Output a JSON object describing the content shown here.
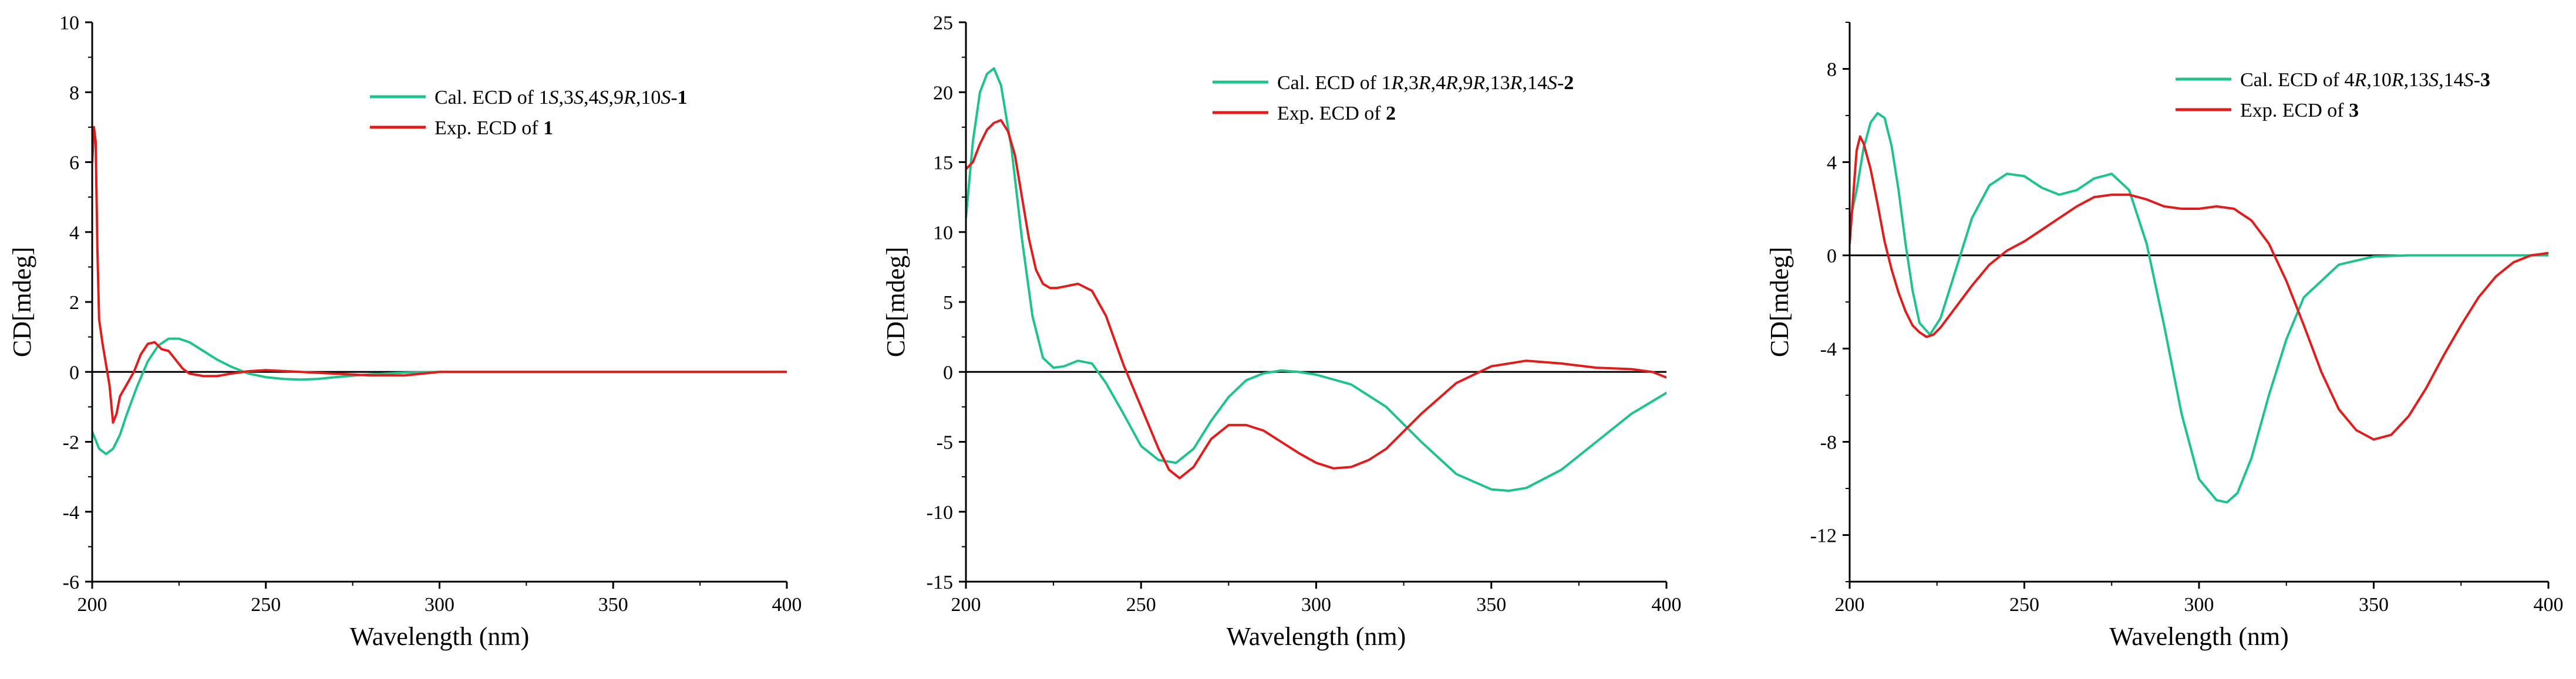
{
  "colors": {
    "calc": "#1dc28f",
    "exp": "#e21b1b",
    "axis": "#000000"
  },
  "chart_data": [
    {
      "type": "line",
      "xlabel": "Wavelength (nm)",
      "ylabel": "CD[mdeg]",
      "xlim": [
        200,
        400
      ],
      "ylim": [
        -6,
        10
      ],
      "xticks": [
        200,
        250,
        300,
        350,
        400
      ],
      "yticks": [
        -6,
        -4,
        -2,
        0,
        2,
        4,
        6,
        8,
        10
      ],
      "xtick_labels": [
        "200",
        "250",
        "300",
        "350",
        "400"
      ],
      "ytick_labels": [
        "-6",
        "-4",
        "-2",
        "0",
        "2",
        "4",
        "6",
        "8",
        "10"
      ],
      "legend_position": "top-right",
      "series": [
        {
          "name": "Cal. ECD of 1S,3S,4S,9R,10S-1",
          "legend_label": "Cal. ECD of 1S,3S,4S,9R,10S-1",
          "color": "#1dc28f",
          "x": [
            200,
            202,
            204,
            206,
            208,
            210,
            213,
            216,
            219,
            222,
            225,
            228,
            232,
            236,
            240,
            245,
            250,
            255,
            260,
            265,
            270,
            280,
            290,
            300,
            320,
            350,
            400
          ],
          "y": [
            -1.7,
            -2.2,
            -2.35,
            -2.2,
            -1.8,
            -1.2,
            -0.4,
            0.3,
            0.75,
            0.95,
            0.95,
            0.85,
            0.6,
            0.35,
            0.15,
            -0.05,
            -0.15,
            -0.2,
            -0.22,
            -0.2,
            -0.15,
            -0.07,
            -0.02,
            0,
            0,
            0,
            0
          ]
        },
        {
          "name": "Exp. ECD of 1",
          "legend_label": "Exp. ECD of 1",
          "color": "#e21b1b",
          "x": [
            200,
            200.5,
            201,
            201.5,
            202,
            203,
            204,
            205,
            206,
            207,
            208,
            210,
            212,
            214,
            216,
            218,
            220,
            222,
            224,
            226,
            228,
            232,
            236,
            240,
            245,
            250,
            260,
            270,
            280,
            290,
            300,
            350,
            400
          ],
          "y": [
            6.0,
            7.0,
            6.6,
            3.5,
            1.5,
            0.8,
            0.2,
            -0.4,
            -1.45,
            -1.2,
            -0.7,
            -0.35,
            0.0,
            0.5,
            0.8,
            0.85,
            0.65,
            0.6,
            0.35,
            0.1,
            -0.05,
            -0.12,
            -0.12,
            -0.05,
            0.02,
            0.05,
            0.0,
            -0.05,
            -0.1,
            -0.1,
            0.0,
            0.0,
            0.0
          ]
        }
      ]
    },
    {
      "type": "line",
      "xlabel": "Wavelength (nm)",
      "ylabel": "CD[mdeg]",
      "xlim": [
        200,
        400
      ],
      "ylim": [
        -15,
        25
      ],
      "xticks": [
        200,
        250,
        300,
        350,
        400
      ],
      "yticks": [
        -15,
        -10,
        -5,
        0,
        5,
        10,
        15,
        20,
        25
      ],
      "xtick_labels": [
        "200",
        "250",
        "300",
        "350",
        "400"
      ],
      "ytick_labels": [
        "-15",
        "-10",
        "-5",
        "0",
        "5",
        "10",
        "15",
        "20",
        "25"
      ],
      "legend_position": "top-right",
      "series": [
        {
          "name": "Cal. ECD of 1R,3R,4R,9R,13R,14S-2",
          "legend_label": "Cal. ECD of 1R,3R,4R,9R,13R,14S-2",
          "color": "#1dc28f",
          "x": [
            200,
            202,
            204,
            206,
            208,
            210,
            213,
            216,
            219,
            222,
            225,
            228,
            232,
            236,
            240,
            245,
            250,
            255,
            260,
            265,
            270,
            275,
            280,
            285,
            290,
            295,
            300,
            310,
            320,
            330,
            340,
            350,
            355,
            360,
            370,
            380,
            390,
            400
          ],
          "y": [
            11.0,
            16.5,
            20.0,
            21.3,
            21.7,
            20.5,
            16.0,
            9.5,
            4.0,
            1.0,
            0.3,
            0.4,
            0.8,
            0.6,
            -0.8,
            -3.0,
            -5.3,
            -6.3,
            -6.5,
            -5.5,
            -3.5,
            -1.8,
            -0.6,
            -0.1,
            0.1,
            0.0,
            -0.2,
            -0.9,
            -2.5,
            -5.0,
            -7.3,
            -8.4,
            -8.5,
            -8.3,
            -7.0,
            -5.0,
            -3.0,
            -1.5
          ]
        },
        {
          "name": "Exp. ECD of 2",
          "legend_label": "Exp. ECD of 2",
          "color": "#e21b1b",
          "x": [
            200,
            202,
            204,
            206,
            208,
            210,
            212,
            214,
            216,
            218,
            220,
            222,
            224,
            226,
            228,
            232,
            236,
            240,
            245,
            250,
            255,
            258,
            261,
            265,
            270,
            275,
            280,
            285,
            290,
            295,
            300,
            305,
            310,
            315,
            320,
            330,
            340,
            350,
            360,
            370,
            380,
            390,
            396,
            400
          ],
          "y": [
            14.5,
            15.0,
            16.3,
            17.3,
            17.8,
            18.0,
            17.2,
            15.5,
            12.5,
            9.5,
            7.3,
            6.3,
            6.0,
            6.0,
            6.1,
            6.3,
            5.8,
            4.0,
            0.5,
            -2.5,
            -5.5,
            -7.0,
            -7.6,
            -6.8,
            -4.8,
            -3.8,
            -3.8,
            -4.2,
            -5.0,
            -5.8,
            -6.5,
            -6.9,
            -6.8,
            -6.3,
            -5.5,
            -3.0,
            -0.8,
            0.4,
            0.8,
            0.6,
            0.3,
            0.2,
            0.0,
            -0.4
          ]
        }
      ]
    },
    {
      "type": "line",
      "xlabel": "Wavelength (nm)",
      "ylabel": "CD[mdeg]",
      "xlim": [
        200,
        400
      ],
      "ylim": [
        -14,
        10
      ],
      "xticks": [
        200,
        250,
        300,
        350,
        400
      ],
      "yticks": [
        -12,
        -8,
        -4,
        0,
        4,
        8
      ],
      "xtick_labels": [
        "200",
        "250",
        "300",
        "350",
        "400"
      ],
      "ytick_labels": [
        "-12",
        "-8",
        "-4",
        "0",
        "4",
        "8"
      ],
      "legend_position": "top-right",
      "series": [
        {
          "name": "Cal. ECD of 4R,10R,13S,14S-3",
          "legend_label": "Cal. ECD of 4R,10R,13S,14S-3",
          "color": "#1dc28f",
          "x": [
            200,
            202,
            204,
            206,
            208,
            210,
            212,
            214,
            216,
            218,
            220,
            223,
            226,
            230,
            235,
            240,
            245,
            250,
            255,
            260,
            265,
            270,
            275,
            280,
            285,
            290,
            295,
            300,
            305,
            308,
            311,
            315,
            320,
            325,
            330,
            340,
            350,
            360,
            370,
            380,
            390,
            400
          ],
          "y": [
            1.4,
            2.8,
            4.6,
            5.7,
            6.1,
            5.9,
            4.7,
            2.8,
            0.5,
            -1.5,
            -2.9,
            -3.4,
            -2.7,
            -0.8,
            1.6,
            3.0,
            3.5,
            3.4,
            2.9,
            2.6,
            2.8,
            3.3,
            3.5,
            2.8,
            0.5,
            -3.0,
            -6.8,
            -9.6,
            -10.5,
            -10.6,
            -10.2,
            -8.7,
            -6.0,
            -3.6,
            -1.8,
            -0.4,
            -0.05,
            0.0,
            0.0,
            0.0,
            0.0,
            0.0
          ]
        },
        {
          "name": "Exp. ECD of 3",
          "legend_label": "Exp. ECD of 3",
          "color": "#e21b1b",
          "x": [
            200,
            201,
            202,
            203,
            204,
            206,
            208,
            210,
            212,
            214,
            216,
            218,
            220,
            222,
            224,
            226,
            230,
            235,
            240,
            245,
            250,
            255,
            260,
            265,
            270,
            275,
            280,
            285,
            290,
            295,
            300,
            305,
            310,
            315,
            320,
            325,
            330,
            335,
            340,
            345,
            350,
            355,
            360,
            365,
            370,
            375,
            380,
            385,
            390,
            395,
            400
          ],
          "y": [
            0.5,
            2.5,
            4.5,
            5.1,
            4.8,
            3.7,
            2.2,
            0.6,
            -0.6,
            -1.6,
            -2.4,
            -3.0,
            -3.3,
            -3.5,
            -3.4,
            -3.1,
            -2.3,
            -1.3,
            -0.4,
            0.2,
            0.6,
            1.1,
            1.6,
            2.1,
            2.5,
            2.6,
            2.6,
            2.4,
            2.1,
            2.0,
            2.0,
            2.1,
            2.0,
            1.5,
            0.5,
            -1.1,
            -3.0,
            -5.0,
            -6.6,
            -7.5,
            -7.9,
            -7.7,
            -6.9,
            -5.7,
            -4.3,
            -3.0,
            -1.8,
            -0.9,
            -0.3,
            0.0,
            0.1
          ]
        }
      ]
    }
  ]
}
